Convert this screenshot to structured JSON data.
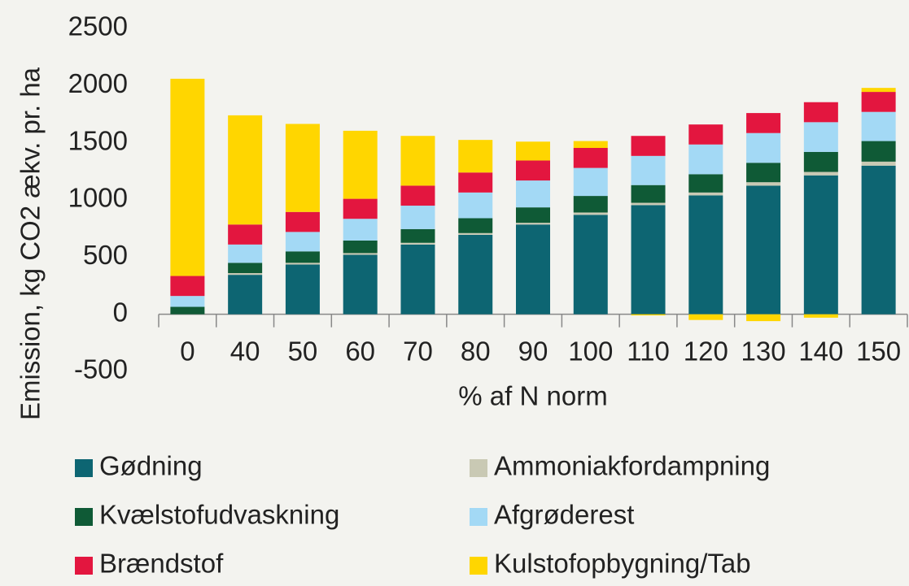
{
  "chart_data": {
    "type": "stacked_bar",
    "y_label": "Emission, kg CO2 ækv. pr. ha",
    "x_label": "% af N norm",
    "categories": [
      "0",
      "40",
      "50",
      "60",
      "70",
      "80",
      "90",
      "100",
      "110",
      "120",
      "130",
      "140",
      "150"
    ],
    "series": [
      {
        "name": "Gødning",
        "color": "#0d6572",
        "values": [
          0,
          345,
          435,
          520,
          610,
          695,
          785,
          870,
          955,
          1040,
          1125,
          1215,
          1300
        ]
      },
      {
        "name": "Ammoniakfordampning",
        "color": "#c9c9b4",
        "values": [
          0,
          15,
          15,
          15,
          15,
          15,
          15,
          20,
          20,
          25,
          30,
          30,
          35
        ]
      },
      {
        "name": "Kvælstofudvaskning",
        "color": "#0f5a36",
        "values": [
          65,
          90,
          100,
          110,
          120,
          130,
          135,
          145,
          155,
          160,
          170,
          175,
          180
        ]
      },
      {
        "name": "Afgrøderest",
        "color": "#a3d9f5",
        "values": [
          95,
          160,
          170,
          190,
          205,
          225,
          235,
          245,
          255,
          260,
          260,
          260,
          255
        ]
      },
      {
        "name": "Brændstof",
        "color": "#e3163f",
        "values": [
          175,
          175,
          175,
          175,
          175,
          175,
          175,
          175,
          175,
          175,
          175,
          175,
          175
        ]
      },
      {
        "name": "Kulstofopbygning/Tab",
        "color": "#ffd600",
        "values": [
          1725,
          955,
          770,
          595,
          435,
          285,
          165,
          60,
          -10,
          -50,
          -60,
          -30,
          35
        ]
      }
    ],
    "ylim": [
      -500,
      2500
    ],
    "yticks": [
      -500,
      0,
      500,
      1000,
      1500,
      2000,
      2500
    ],
    "legend": "bottom"
  }
}
